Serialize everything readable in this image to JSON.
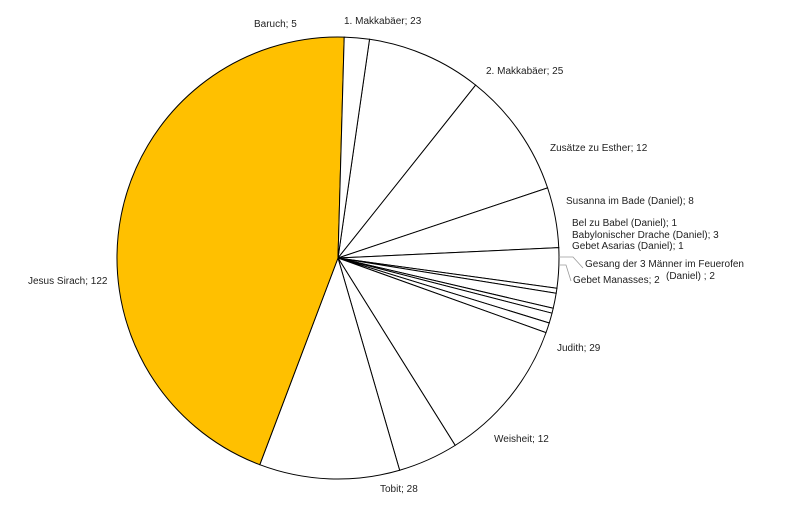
{
  "chart_data": {
    "type": "pie",
    "title": "",
    "start_angle_deg": 8.2,
    "direction": "clockwise",
    "categories": [
      "1. Makkabäer",
      "2. Makkabäer",
      "Zusätze zu Esther",
      "Susanna im Bade (Daniel)",
      "Bel zu Babel (Daniel)",
      "Babylonischer Drache (Daniel)",
      "Gebet Asarias (Daniel)",
      "Gesang der 3 Männer im Feuerofen (Daniel) ",
      "Gebet Manasses",
      "Judith",
      "Weisheit",
      "Tobit",
      "Jesus Sirach",
      "Baruch"
    ],
    "values": [
      23,
      25,
      12,
      8,
      1,
      3,
      1,
      2,
      2,
      29,
      12,
      28,
      122,
      5
    ],
    "labels": [
      [
        "1. Makkabäer; 23"
      ],
      [
        "2. Makkabäer; 25"
      ],
      [
        "Zusätze zu Esther; 12"
      ],
      [
        "Susanna im Bade (Daniel); 8"
      ],
      [
        "Bel zu Babel (Daniel); 1"
      ],
      [
        "Babylonischer Drache (Daniel); 3"
      ],
      [
        "Gebet Asarias (Daniel); 1"
      ],
      [
        "Gesang der 3 Männer im Feuerofen",
        "(Daniel) ; 2"
      ],
      [
        "Gebet Manasses; 2"
      ],
      [
        "Judith; 29"
      ],
      [
        "Weisheit; 12"
      ],
      [
        "Tobit; 28"
      ],
      [
        "Jesus Sirach; 122"
      ],
      [
        "Baruch; 5"
      ]
    ],
    "colors": [
      "#ffffff",
      "#ffffff",
      "#ffffff",
      "#ffffff",
      "#ffffff",
      "#ffffff",
      "#ffffff",
      "#ffffff",
      "#ffffff",
      "#ffffff",
      "#ffffff",
      "#ffffff",
      "#ffc000",
      "#ffffff"
    ],
    "slice_border_color": "#000000",
    "leader_line_color": "#9a9a9a",
    "legend": "none"
  }
}
